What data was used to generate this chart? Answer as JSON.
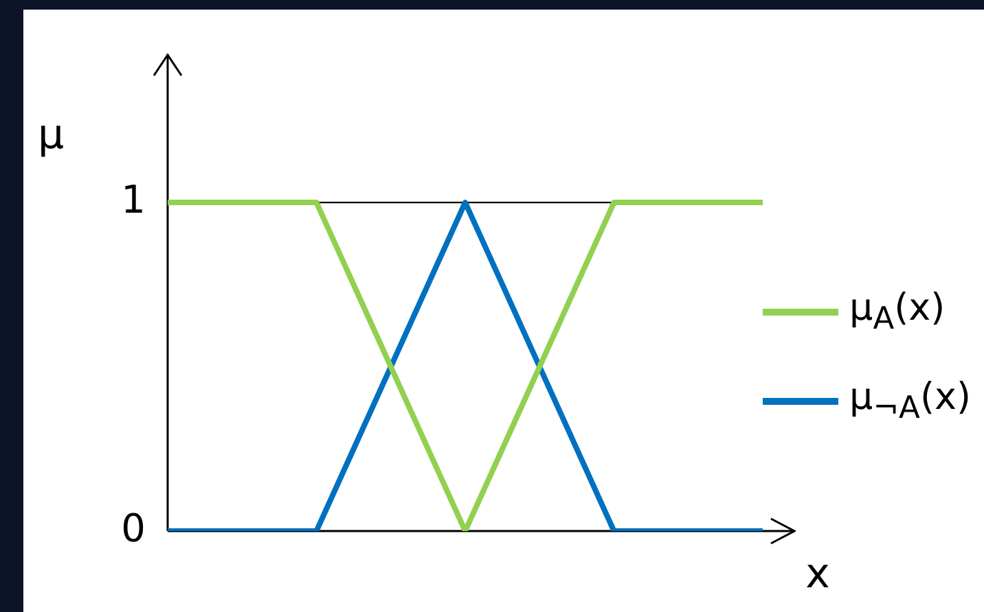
{
  "chart_data": {
    "type": "line",
    "xlabel": "x",
    "ylabel": "μ",
    "categories": [
      null,
      null,
      null,
      null,
      null
    ],
    "ylim": [
      0,
      1.45
    ],
    "yticks": [
      0,
      1
    ],
    "tick_labels": "y",
    "legend": "right",
    "marker": "none",
    "line_style": "solid",
    "ref_lines": [
      {
        "axis": "y",
        "value": 1
      }
    ],
    "series": [
      {
        "name": "μ$_{A}$(x)",
        "color": "#92d050",
        "values": [
          1,
          1,
          0,
          1,
          1
        ]
      },
      {
        "name": "μ$_{¬A}$(x)",
        "color": "#0070c0",
        "values": [
          0,
          0,
          1,
          0,
          0
        ]
      }
    ]
  }
}
